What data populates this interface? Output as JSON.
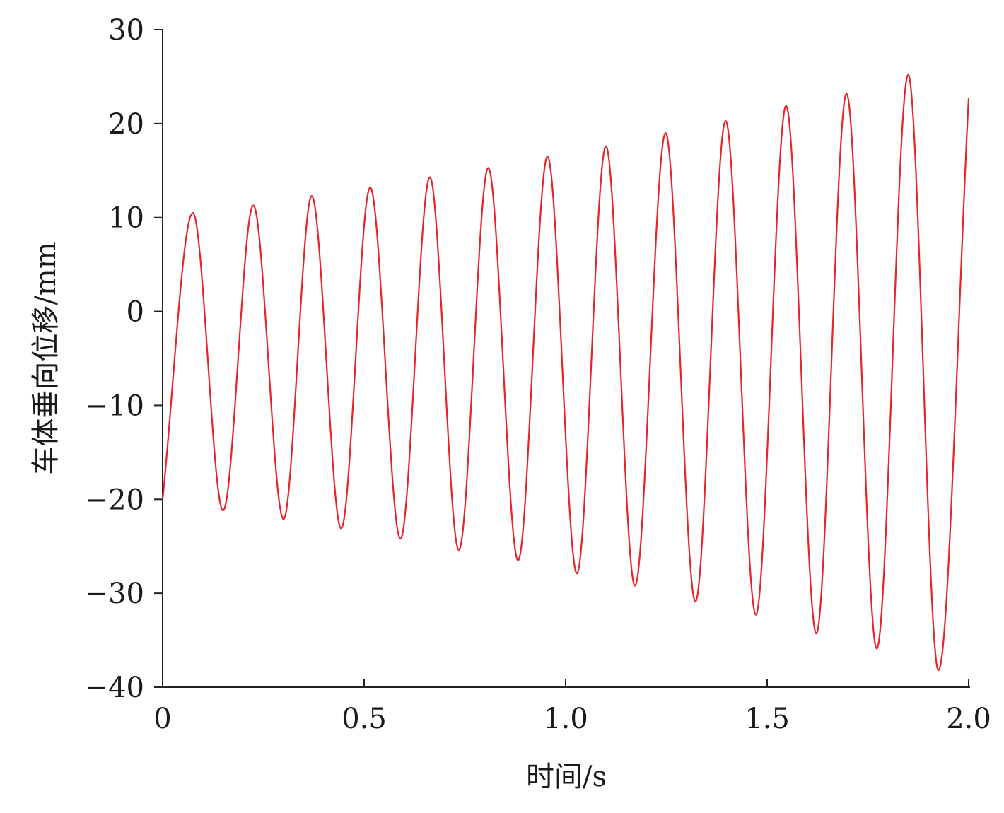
{
  "chart_data": {
    "type": "line",
    "xlabel": "时间/s",
    "ylabel": "车体垂向位移/mm",
    "xlim": [
      0,
      2.0
    ],
    "ylim": [
      -40,
      30
    ],
    "x_ticks": [
      "0",
      "0.5",
      "1.0",
      "1.5",
      "2.0"
    ],
    "y_ticks": [
      "30",
      "20",
      "10",
      "0",
      "−10",
      "−20",
      "−30",
      "−40"
    ],
    "grid": false,
    "legend": "none",
    "series": [
      {
        "color": "#e8232a",
        "x": [
          0,
          0.075,
          0.15,
          0.225,
          0.3,
          0.37,
          0.443,
          0.515,
          0.59,
          0.663,
          0.735,
          0.808,
          0.882,
          0.955,
          1.028,
          1.1,
          1.172,
          1.248,
          1.322,
          1.397,
          1.472,
          1.547,
          1.622,
          1.697,
          1.772,
          1.85,
          1.925,
          2.0
        ],
        "y": [
          -20,
          10.5,
          -21.2,
          11.3,
          -22.1,
          12.3,
          -23.1,
          13.2,
          -24.2,
          14.3,
          -25.4,
          15.3,
          -26.5,
          16.5,
          -27.9,
          17.6,
          -29.2,
          19.0,
          -30.9,
          20.3,
          -32.3,
          21.9,
          -34.3,
          23.2,
          -35.9,
          25.2,
          -38.2,
          22.7
        ]
      }
    ]
  }
}
